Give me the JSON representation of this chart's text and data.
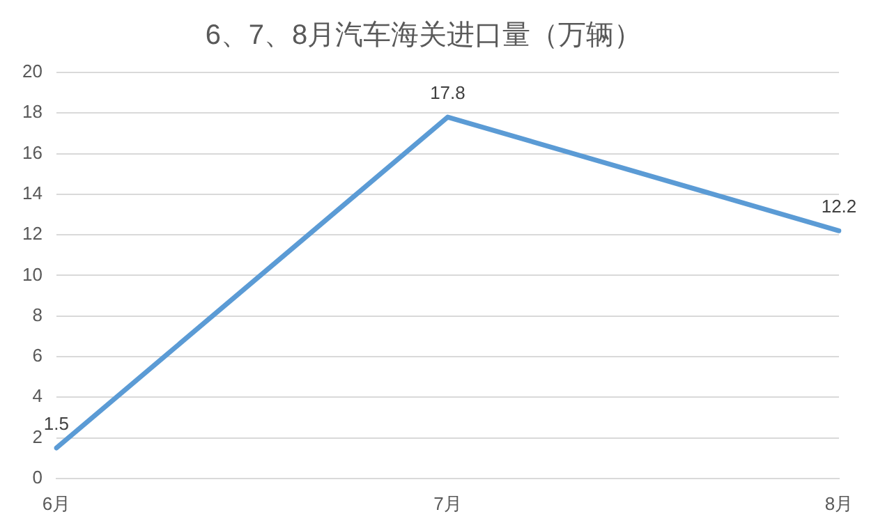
{
  "chart_data": {
    "type": "line",
    "title": "6、7、8月汽车海关进口量（万辆）",
    "categories": [
      "6月",
      "7月",
      "8月"
    ],
    "series": [
      {
        "color": "#5b9bd5",
        "values": [
          1.5,
          17.8,
          12.2
        ]
      }
    ],
    "ylim": [
      0,
      20
    ],
    "yticks": [
      0,
      2,
      4,
      6,
      8,
      10,
      12,
      14,
      16,
      18,
      20
    ],
    "grid": "y",
    "legend": false,
    "marker": "none",
    "line_style": "solid",
    "data_labels": true
  }
}
